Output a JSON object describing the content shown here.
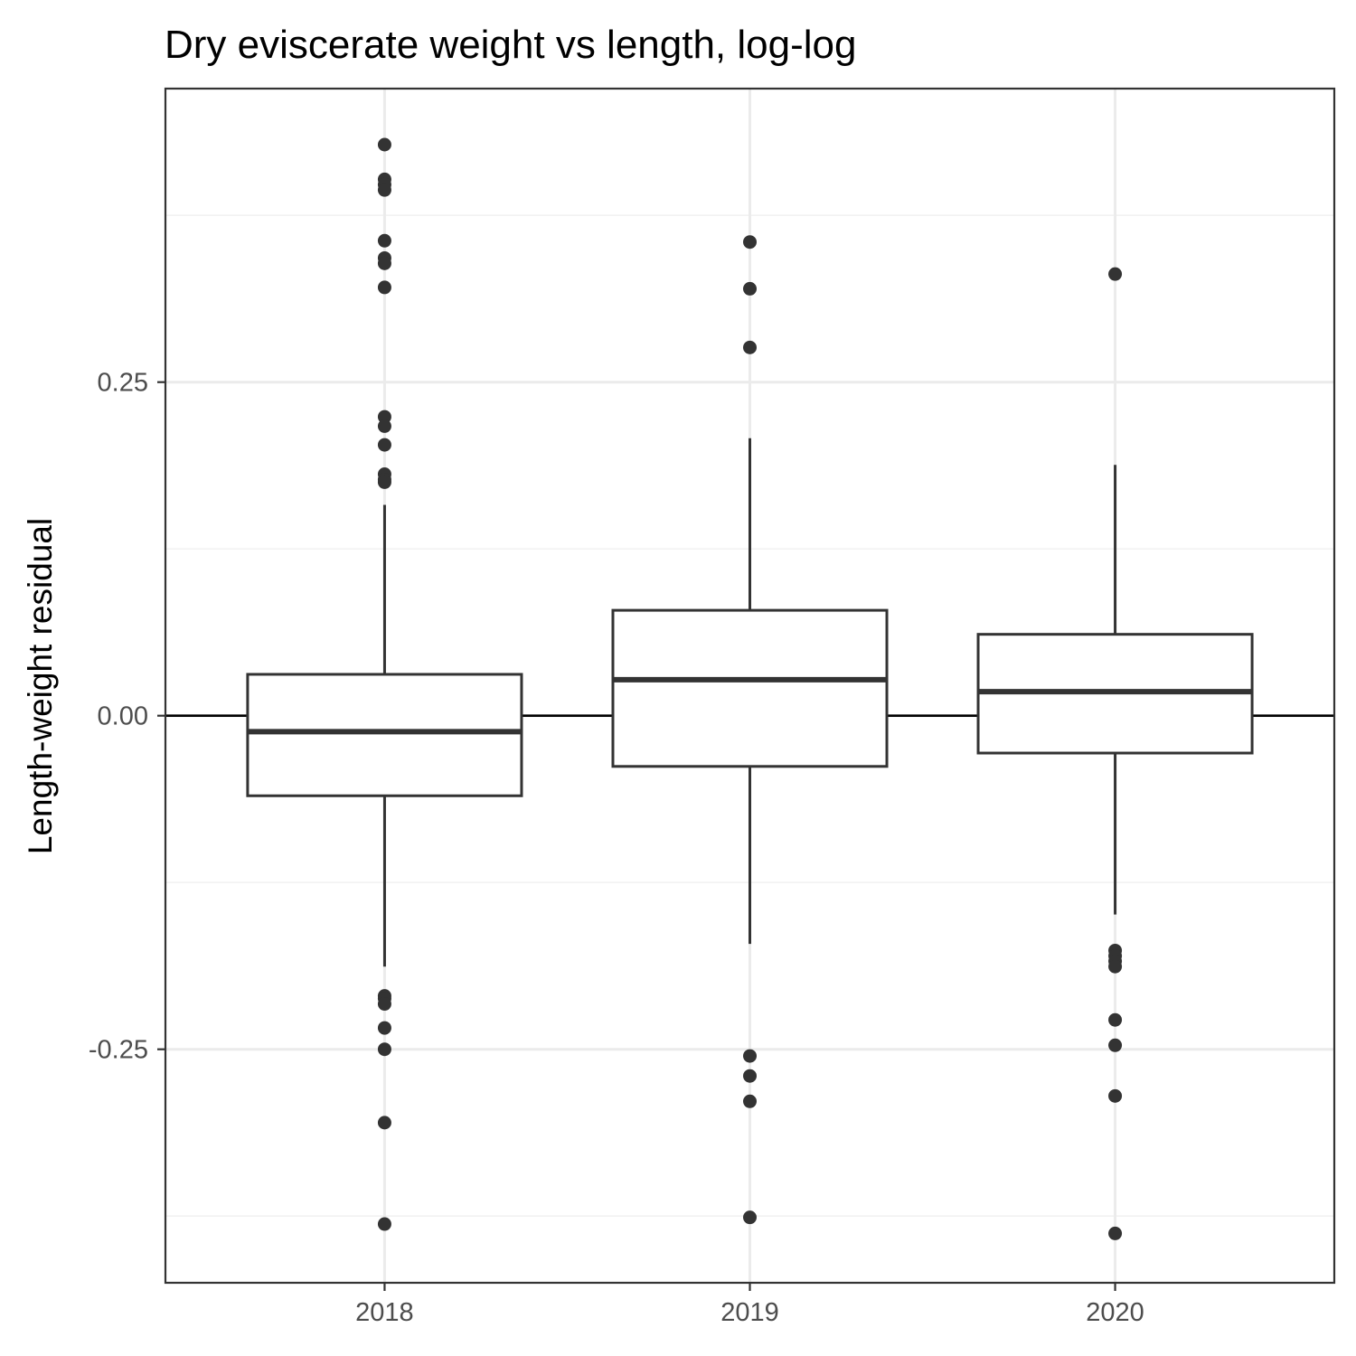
{
  "chart_data": {
    "type": "boxplot",
    "title": "Dry eviscerate weight vs length, log-log",
    "xlabel": "",
    "ylabel": "Length-weight residual",
    "categories": [
      "2018",
      "2019",
      "2020"
    ],
    "ylim": [
      -0.425,
      0.47
    ],
    "y_ticks": [
      {
        "value": 0.25,
        "label": "0.25"
      },
      {
        "value": 0.0,
        "label": "0.00"
      },
      {
        "value": -0.25,
        "label": "-0.25"
      }
    ],
    "reference_line": 0,
    "grid": true,
    "colors": {
      "box_stroke": "#333333",
      "outlier": "#333333",
      "grid_major": "#ebebeb",
      "grid_minor": "#f2f2f2",
      "panel_border": "#333333",
      "reference_line": "#000000"
    },
    "boxes": [
      {
        "category": "2018",
        "whisker_low": -0.188,
        "q1": -0.06,
        "median": -0.012,
        "q3": 0.031,
        "whisker_high": 0.158,
        "outliers": [
          0.428,
          0.402,
          0.398,
          0.394,
          0.356,
          0.343,
          0.339,
          0.321,
          0.224,
          0.217,
          0.203,
          0.181,
          0.177,
          0.175,
          -0.21,
          -0.212,
          -0.216,
          -0.234,
          -0.25,
          -0.305,
          -0.381
        ]
      },
      {
        "category": "2019",
        "whisker_low": -0.171,
        "q1": -0.038,
        "median": 0.027,
        "q3": 0.079,
        "whisker_high": 0.208,
        "outliers": [
          0.355,
          0.32,
          0.276,
          -0.255,
          -0.27,
          -0.289,
          -0.376
        ]
      },
      {
        "category": "2020",
        "whisker_low": -0.149,
        "q1": -0.028,
        "median": 0.018,
        "q3": 0.061,
        "whisker_high": 0.188,
        "outliers": [
          0.331,
          -0.176,
          -0.18,
          -0.184,
          -0.188,
          -0.228,
          -0.247,
          -0.285,
          -0.388
        ]
      }
    ]
  }
}
